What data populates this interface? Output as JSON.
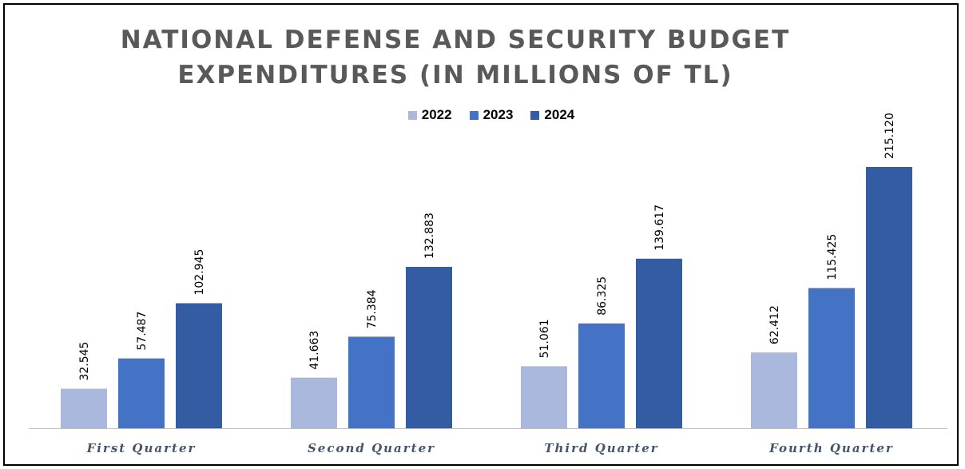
{
  "chart_data": {
    "type": "bar",
    "title": [
      "NATIONAL DEFENSE AND SECURITY BUDGET",
      "EXPENDITURES (IN MILLIONS OF TL)"
    ],
    "categories": [
      "First Quarter",
      "Second Quarter",
      "Third Quarter",
      "Fourth Quarter"
    ],
    "series": [
      {
        "name": "2022",
        "values": [
          32.545,
          41.663,
          51.061,
          62.412
        ],
        "labels": [
          "32.545",
          "41.663",
          "51.061",
          "62.412"
        ],
        "color": "#a9b8dc"
      },
      {
        "name": "2023",
        "values": [
          57.487,
          75.384,
          86.325,
          115.425
        ],
        "labels": [
          "57.487",
          "75.384",
          "86.325",
          "115.425"
        ],
        "color": "#4472c4"
      },
      {
        "name": "2024",
        "values": [
          102.945,
          132.883,
          139.617,
          215.12
        ],
        "labels": [
          "102.945",
          "132.883",
          "139.617",
          "215.120"
        ],
        "color": "#335ca3"
      }
    ],
    "legend_position": "top-center",
    "grid": false,
    "ylim": [
      0,
      240
    ]
  }
}
